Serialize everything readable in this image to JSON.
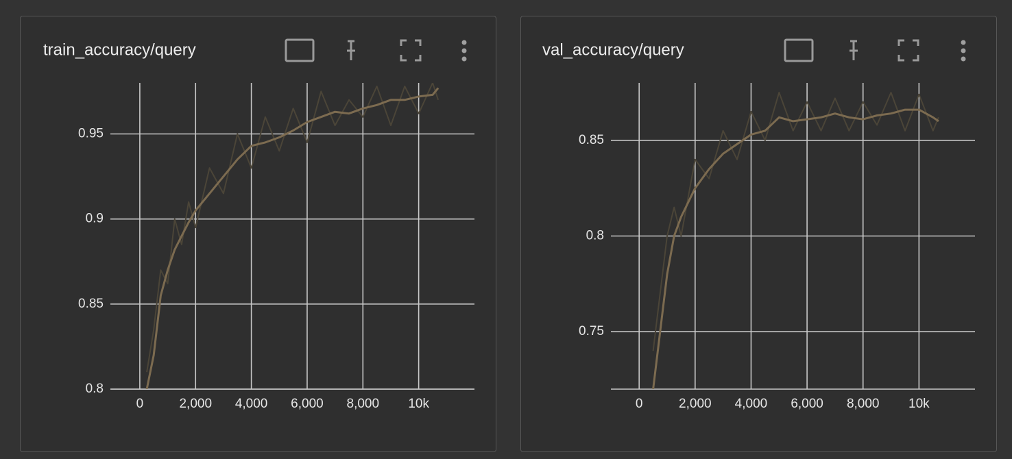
{
  "chart_data": [
    {
      "type": "line",
      "title": "train_accuracy/query",
      "x": [
        250,
        500,
        750,
        1000,
        1250,
        1500,
        1750,
        2000,
        2500,
        3000,
        3500,
        4000,
        4500,
        5000,
        5500,
        6000,
        6500,
        7000,
        7500,
        8000,
        8500,
        9000,
        9500,
        10000,
        10500,
        10700
      ],
      "series": [
        {
          "color": "#4b4538",
          "values": [
            0.81,
            0.835,
            0.87,
            0.862,
            0.9,
            0.885,
            0.91,
            0.895,
            0.93,
            0.915,
            0.95,
            0.93,
            0.96,
            0.94,
            0.965,
            0.945,
            0.975,
            0.955,
            0.97,
            0.96,
            0.978,
            0.955,
            0.978,
            0.962,
            0.98,
            0.97
          ]
        },
        {
          "color": "#7c6b50",
          "values": [
            0.8,
            0.82,
            0.855,
            0.87,
            0.882,
            0.89,
            0.898,
            0.905,
            0.915,
            0.925,
            0.935,
            0.943,
            0.945,
            0.948,
            0.952,
            0.957,
            0.96,
            0.963,
            0.962,
            0.965,
            0.967,
            0.97,
            0.97,
            0.972,
            0.973,
            0.977
          ]
        }
      ],
      "xlim": [
        -1055,
        12000
      ],
      "ylim": [
        0.8,
        0.98
      ],
      "xticks": [
        0,
        {
          "value": 2000,
          "label": "2,000"
        },
        {
          "value": 4000,
          "label": "4,000"
        },
        {
          "value": 6000,
          "label": "6,000"
        },
        {
          "value": 8000,
          "label": "8,000"
        },
        {
          "value": 10000,
          "label": "10k"
        }
      ],
      "yticks": [
        0.8,
        0.85,
        0.9,
        0.95
      ],
      "grid": true
    },
    {
      "type": "line",
      "title": "val_accuracy/query",
      "x": [
        500,
        750,
        1000,
        1250,
        1500,
        2000,
        2500,
        3000,
        3500,
        4000,
        4500,
        5000,
        5500,
        6000,
        6500,
        7000,
        7500,
        8000,
        8500,
        9000,
        9500,
        10000,
        10500,
        10700
      ],
      "series": [
        {
          "color": "#4b4538",
          "values": [
            0.74,
            0.77,
            0.8,
            0.815,
            0.8,
            0.84,
            0.83,
            0.855,
            0.84,
            0.865,
            0.85,
            0.875,
            0.855,
            0.87,
            0.855,
            0.872,
            0.855,
            0.87,
            0.858,
            0.875,
            0.855,
            0.874,
            0.855,
            0.862
          ]
        },
        {
          "color": "#7c6b50",
          "values": [
            0.72,
            0.75,
            0.78,
            0.8,
            0.81,
            0.825,
            0.835,
            0.843,
            0.848,
            0.853,
            0.855,
            0.862,
            0.86,
            0.861,
            0.862,
            0.864,
            0.862,
            0.861,
            0.863,
            0.864,
            0.866,
            0.866,
            0.862,
            0.86
          ]
        }
      ],
      "xlim": [
        -1009,
        12000
      ],
      "ylim": [
        0.72,
        0.88
      ],
      "xticks": [
        0,
        {
          "value": 2000,
          "label": "2,000"
        },
        {
          "value": 4000,
          "label": "4,000"
        },
        {
          "value": 6000,
          "label": "6,000"
        },
        {
          "value": 8000,
          "label": "8,000"
        },
        {
          "value": 10000,
          "label": "10k"
        }
      ],
      "yticks": [
        0.75,
        0.8,
        0.85
      ],
      "grid": true
    }
  ]
}
